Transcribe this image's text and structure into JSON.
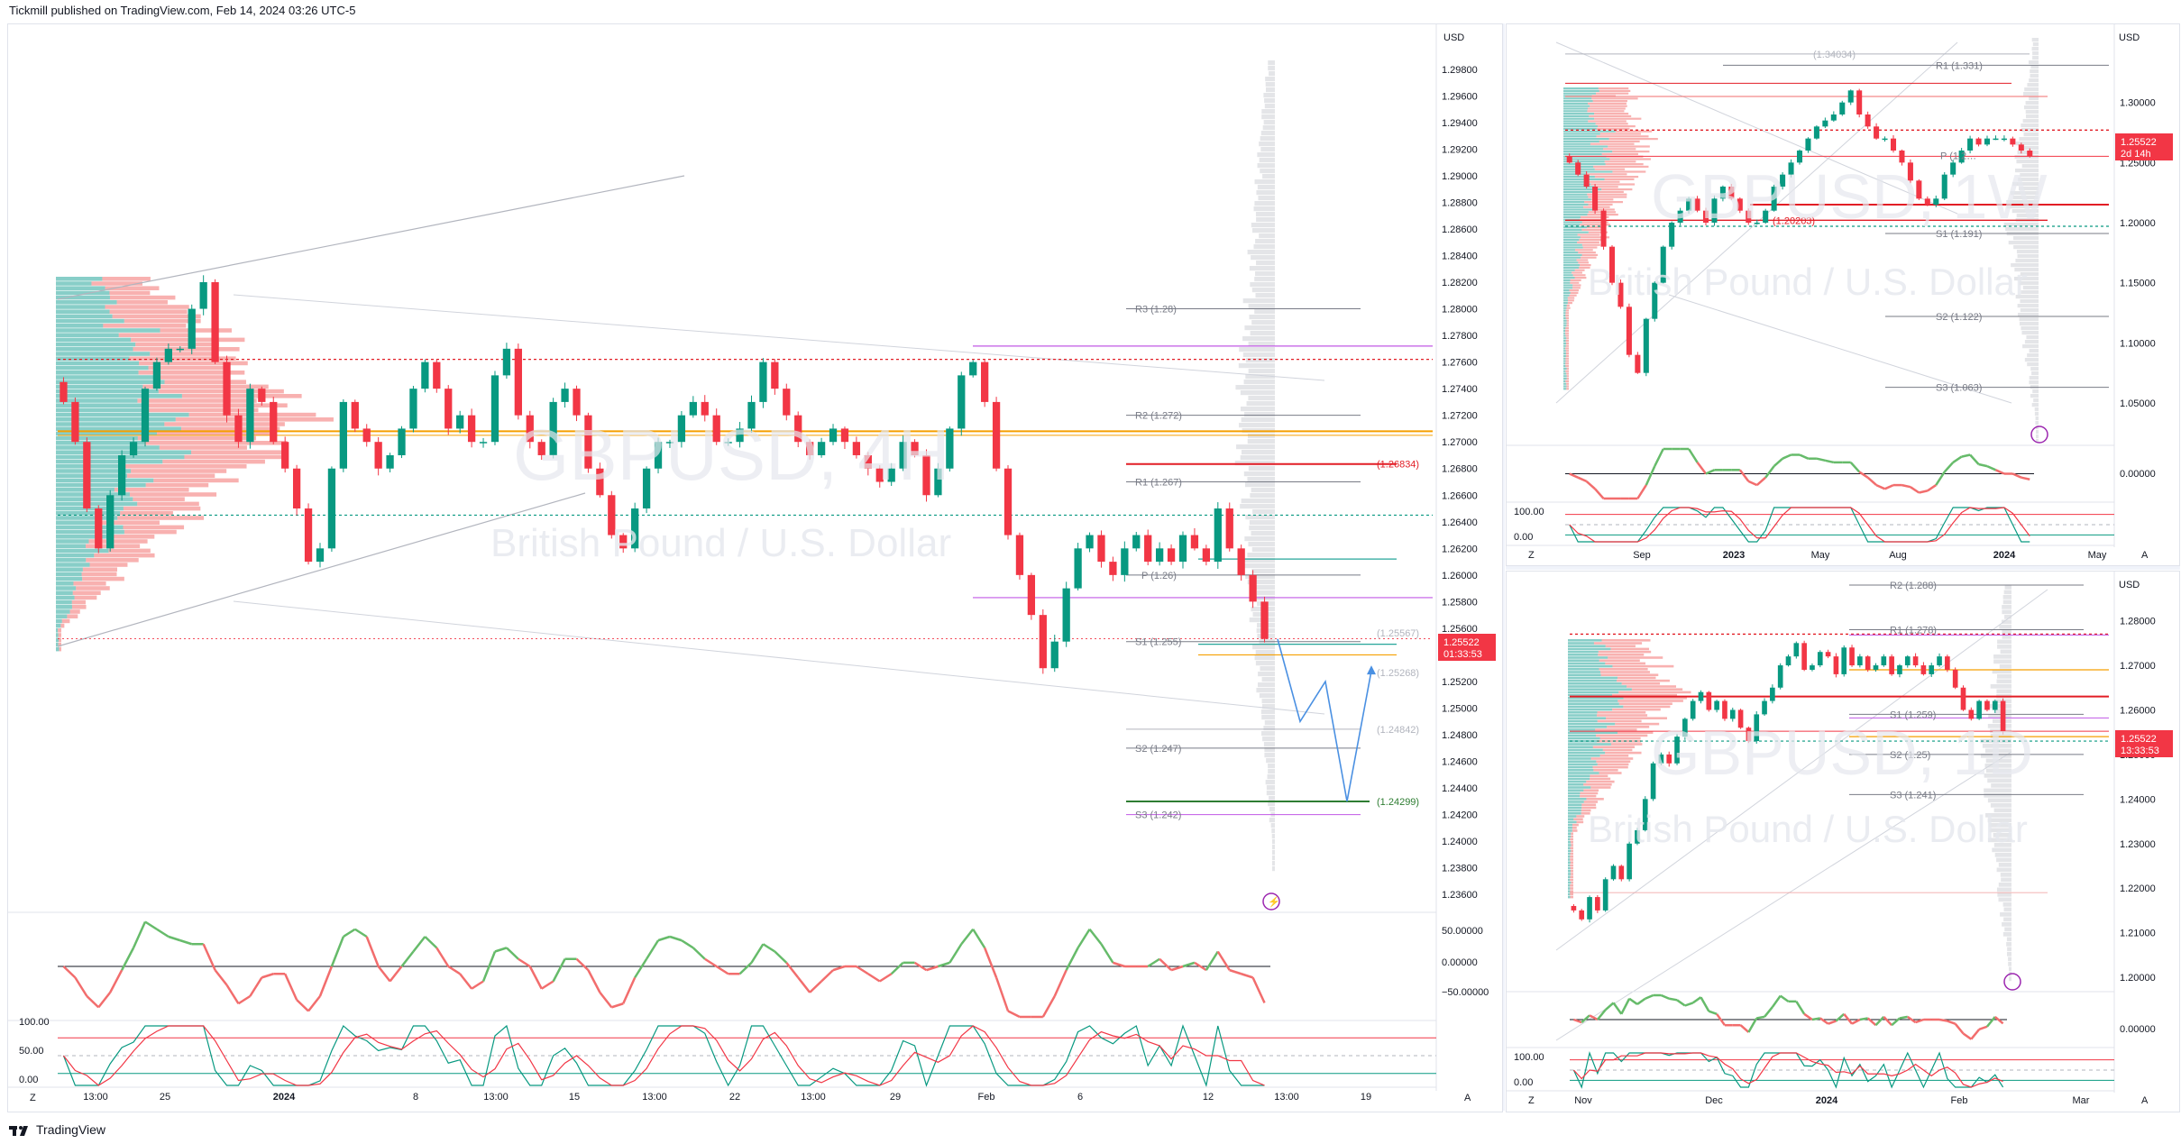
{
  "header": {
    "publisher_text": "Tickmill published on TradingView.com, Feb 14, 2024 03:26 UTC-5"
  },
  "footer": {
    "brand": "TradingView"
  },
  "colors": {
    "bull": "#089981",
    "bear": "#f23645",
    "red_line": "#e21d25",
    "orange": "#f59f00",
    "green_line": "#26a69a",
    "purple": "#c158e6",
    "blue_projection": "#4a90e2",
    "price_tag": "#f23645"
  },
  "main_chart": {
    "symbol_watermark": "GBPUSD, 4H",
    "description_watermark": "British Pound / U.S. Dollar",
    "currency": "USD",
    "last_price": "1.25522",
    "countdown": "01:33:53",
    "time_axis": [
      "13:00",
      "25",
      "2024",
      "8",
      "13:00",
      "15",
      "13:00",
      "22",
      "13:00",
      "29",
      "Feb",
      "6",
      "12",
      "13:00",
      "19"
    ],
    "price_axis": [
      "1.29800",
      "1.29600",
      "1.29400",
      "1.29200",
      "1.29000",
      "1.28800",
      "1.28600",
      "1.28400",
      "1.28200",
      "1.28000",
      "1.27800",
      "1.27600",
      "1.27400",
      "1.27200",
      "1.27000",
      "1.26800",
      "1.26600",
      "1.26400",
      "1.26200",
      "1.26000",
      "1.25800",
      "1.25600",
      "1.25400",
      "1.25200",
      "1.25000",
      "1.24800",
      "1.24600",
      "1.24400",
      "1.24200",
      "1.24000",
      "1.23800",
      "1.23600"
    ],
    "pivot_labels": [
      "R3 (1.28)",
      "R2 (1.272)",
      "R1 (1.267)",
      "P (1.26)",
      "S1 (1.255)",
      "S2 (1.247)",
      "S3 (1.242)"
    ],
    "level_labels": [
      "(1.26834)",
      "(1.25268)",
      "(1.24842)",
      "(1.24299)",
      "(1.25567)"
    ],
    "momentum_axis": [
      "50.00000",
      "0.00000",
      "−50.00000"
    ],
    "stoch_axis": [
      "100.00",
      "50.00",
      "0.00"
    ],
    "z_label": "Z",
    "a_label": "A"
  },
  "weekly_chart": {
    "symbol_watermark": "GBPUSD, 1W",
    "description_watermark": "British Pound / U.S. Dollar",
    "currency": "USD",
    "last_price": "1.25522",
    "countdown": "2d 14h",
    "time_axis": [
      "Sep",
      "2023",
      "May",
      "Aug",
      "2024",
      "May"
    ],
    "price_axis": [
      "1.30000",
      "1.25000",
      "1.20000",
      "1.15000",
      "1.10000",
      "1.05000"
    ],
    "pivot_labels": [
      "(1.34034)",
      "R1 (1.331)",
      "P (1.2…",
      "(1.20203)",
      "S1 (1.191)",
      "S2 (1.122)",
      "S3 (1.063)"
    ],
    "momentum_axis": [
      "0.00000"
    ],
    "stoch_axis": [
      "100.00",
      "0.00"
    ],
    "z_label": "Z",
    "a_label": "A"
  },
  "daily_chart": {
    "symbol_watermark": "GBPUSD, 1D",
    "description_watermark": "British Pound / U.S. Dollar",
    "currency": "USD",
    "last_price": "1.25522",
    "countdown": "13:33:53",
    "time_axis": [
      "Nov",
      "Dec",
      "2024",
      "Feb",
      "Mar"
    ],
    "price_axis": [
      "1.28000",
      "1.27000",
      "1.26000",
      "1.25000",
      "1.24000",
      "1.23000",
      "1.22000",
      "1.21000",
      "1.20000"
    ],
    "pivot_labels": [
      "R2 (1.288)",
      "R1 (1.278)",
      "S1 (1.259)",
      "S2 (1.25)",
      "S3 (1.241)"
    ],
    "momentum_axis": [
      "0.00000"
    ],
    "stoch_axis": [
      "100.00",
      "0.00"
    ],
    "z_label": "Z",
    "a_label": "A"
  },
  "chart_data": [
    {
      "type": "candlestick",
      "title": "GBPUSD, 4H",
      "ylim": [
        1.235,
        1.299
      ],
      "last": 1.25522,
      "close_path": [
        1.273,
        1.27,
        1.265,
        1.262,
        1.266,
        1.269,
        1.27,
        1.274,
        1.276,
        1.277,
        1.277,
        1.28,
        1.282,
        1.276,
        1.272,
        1.27,
        1.274,
        1.273,
        1.27,
        1.268,
        1.265,
        1.261,
        1.262,
        1.268,
        1.273,
        1.271,
        1.27,
        1.268,
        1.269,
        1.271,
        1.274,
        1.276,
        1.274,
        1.271,
        1.272,
        1.27,
        1.27,
        1.275,
        1.277,
        1.272,
        1.27,
        1.269,
        1.273,
        1.274,
        1.272,
        1.268,
        1.266,
        1.263,
        1.262,
        1.265,
        1.268,
        1.27,
        1.27,
        1.272,
        1.273,
        1.272,
        1.27,
        1.27,
        1.271,
        1.273,
        1.276,
        1.274,
        1.272,
        1.27,
        1.269,
        1.27,
        1.271,
        1.27,
        1.269,
        1.268,
        1.267,
        1.268,
        1.27,
        1.269,
        1.266,
        1.268,
        1.271,
        1.275,
        1.276,
        1.273,
        1.268,
        1.263,
        1.26,
        1.257,
        1.253,
        1.255,
        1.259,
        1.262,
        1.263,
        1.261,
        1.26,
        1.262,
        1.263,
        1.261,
        1.262,
        1.261,
        1.263,
        1.262,
        1.261,
        1.265,
        1.262,
        1.26,
        1.258,
        1.2552
      ],
      "pivots": {
        "R3": 1.28,
        "R2": 1.272,
        "R1": 1.267,
        "P": 1.26,
        "S1": 1.255,
        "S2": 1.247,
        "S3": 1.242
      },
      "levels": [
        1.26834,
        1.25567,
        1.25268,
        1.24842,
        1.24299
      ],
      "projection": [
        1.2552,
        1.249,
        1.252,
        1.243,
        1.2528
      ]
    },
    {
      "type": "candlestick",
      "title": "GBPUSD, 1W",
      "ylim": [
        1.02,
        1.35
      ],
      "last": 1.25522,
      "close_path": [
        1.25,
        1.24,
        1.23,
        1.21,
        1.18,
        1.15,
        1.13,
        1.09,
        1.075,
        1.12,
        1.15,
        1.18,
        1.2,
        1.21,
        1.22,
        1.21,
        1.2,
        1.22,
        1.23,
        1.22,
        1.21,
        1.2,
        1.2,
        1.21,
        1.23,
        1.24,
        1.25,
        1.26,
        1.27,
        1.28,
        1.285,
        1.29,
        1.3,
        1.31,
        1.29,
        1.28,
        1.27,
        1.27,
        1.26,
        1.25,
        1.235,
        1.22,
        1.215,
        1.22,
        1.24,
        1.25,
        1.26,
        1.27,
        1.265,
        1.27,
        1.27,
        1.27,
        1.265,
        1.26,
        1.2552
      ],
      "pivots": {
        "R1": 1.331,
        "S1": 1.191,
        "S2": 1.122,
        "S3": 1.063
      },
      "levels": [
        1.34034,
        1.20203
      ]
    },
    {
      "type": "candlestick",
      "title": "GBPUSD, 1D",
      "ylim": [
        1.199,
        1.287
      ],
      "last": 1.25522,
      "close_path": [
        1.215,
        1.213,
        1.218,
        1.215,
        1.222,
        1.225,
        1.222,
        1.23,
        1.233,
        1.24,
        1.248,
        1.25,
        1.248,
        1.254,
        1.258,
        1.262,
        1.264,
        1.26,
        1.262,
        1.258,
        1.26,
        1.256,
        1.253,
        1.259,
        1.262,
        1.265,
        1.27,
        1.272,
        1.275,
        1.269,
        1.27,
        1.273,
        1.272,
        1.268,
        1.274,
        1.27,
        1.272,
        1.269,
        1.27,
        1.272,
        1.268,
        1.27,
        1.272,
        1.27,
        1.268,
        1.27,
        1.272,
        1.269,
        1.265,
        1.26,
        1.258,
        1.262,
        1.26,
        1.262,
        1.2552
      ],
      "pivots": {
        "R2": 1.288,
        "R1": 1.278,
        "S1": 1.259,
        "S2": 1.25,
        "S3": 1.241
      }
    }
  ]
}
